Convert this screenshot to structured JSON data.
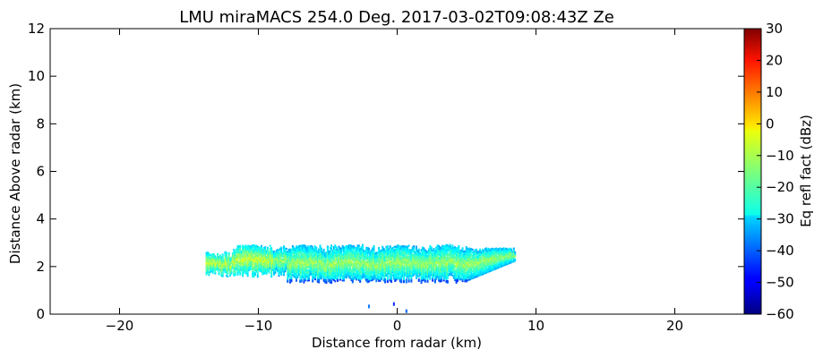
{
  "chart_data": {
    "type": "heatmap",
    "title": "LMU miraMACS 254.0 Deg. 2017-03-02T09:08:43Z  Ze",
    "xlabel": "Distance from radar (km)",
    "ylabel": "Distance Above radar  (km)",
    "xlim": [
      -25,
      25
    ],
    "ylim": [
      0,
      12
    ],
    "x_ticks": [
      -20,
      -10,
      0,
      10,
      20
    ],
    "y_ticks": [
      0,
      2,
      4,
      6,
      8,
      10,
      12
    ],
    "grid": false,
    "colorbar": {
      "label": "Eq refl fact (dBz)",
      "range": [
        -60,
        30
      ],
      "ticks": [
        30,
        20,
        10,
        0,
        -10,
        -20,
        -30,
        -40,
        -50,
        -60
      ],
      "colormap": "jet"
    },
    "echo": {
      "x_range": [
        -13.8,
        8.5
      ],
      "base_km": 1.3,
      "top_km": 2.9,
      "core_height_km": 1.8,
      "core_dbz": -12,
      "edge_dbz": -32,
      "isolated_points": [
        {
          "x": -2.1,
          "y": 0.4,
          "dbz": -38
        },
        {
          "x": -0.3,
          "y": 0.5,
          "dbz": -45
        },
        {
          "x": 0.6,
          "y": 0.2,
          "dbz": -40
        }
      ]
    }
  }
}
